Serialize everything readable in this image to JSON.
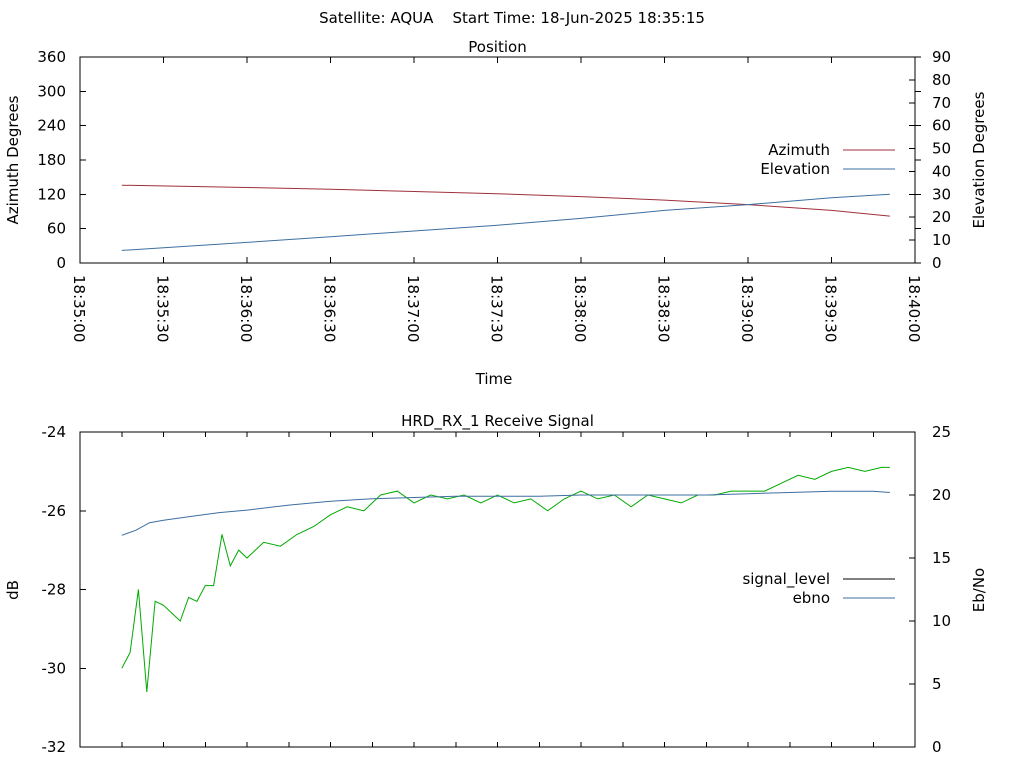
{
  "page_title": "Satellite: AQUA    Start Time: 18-Jun-2025 18:35:15",
  "chart_data": [
    {
      "type": "line",
      "title": "Position",
      "xlabel": "Time",
      "ylabel_left": "Azimuth Degrees",
      "ylabel_right": "Elevation Degrees",
      "x_ticks": [
        "18:35:00",
        "18:35:30",
        "18:36:00",
        "18:36:30",
        "18:37:00",
        "18:37:30",
        "18:38:00",
        "18:38:30",
        "18:39:00",
        "18:39:30",
        "18:40:00"
      ],
      "xlim": [
        "18:35:00",
        "18:40:00"
      ],
      "ylim_left": [
        0,
        360
      ],
      "ylim_right": [
        0,
        90
      ],
      "yticks_left": [
        0,
        60,
        120,
        180,
        240,
        300,
        360
      ],
      "yticks_right": [
        0,
        10,
        20,
        30,
        40,
        50,
        60,
        70,
        80,
        90
      ],
      "grid": false,
      "legend_position": "right",
      "series": [
        {
          "name": "Azimuth",
          "axis": "left",
          "color": "#a0303c",
          "x": [
            "18:35:15",
            "18:36:00",
            "18:36:30",
            "18:37:00",
            "18:37:30",
            "18:38:00",
            "18:38:30",
            "18:39:00",
            "18:39:30",
            "18:39:51"
          ],
          "y": [
            136,
            132,
            129,
            125,
            121,
            116,
            110,
            102,
            92,
            82
          ]
        },
        {
          "name": "Elevation",
          "axis": "right",
          "color": "#3d6fa0",
          "x": [
            "18:35:15",
            "18:36:00",
            "18:36:30",
            "18:37:00",
            "18:37:30",
            "18:38:00",
            "18:38:30",
            "18:39:00",
            "18:39:30",
            "18:39:51"
          ],
          "y": [
            5.5,
            9,
            11.5,
            14,
            16.5,
            19.5,
            23,
            25.5,
            28.5,
            30
          ]
        }
      ]
    },
    {
      "type": "line",
      "title": "HRD_RX_1 Receive Signal",
      "ylabel_left": "dB",
      "ylabel_right": "Eb/No",
      "xlim": [
        "18:35:00",
        "18:40:00"
      ],
      "ylim_left": [
        -32,
        -24
      ],
      "ylim_right": [
        0,
        25
      ],
      "yticks_left": [
        -32,
        -30,
        -28,
        -26,
        -24
      ],
      "yticks_right": [
        0,
        5,
        10,
        15,
        20,
        25
      ],
      "grid": false,
      "legend_position": "right",
      "legend": [
        {
          "label": "signal_level",
          "color": "#000000"
        },
        {
          "label": "ebno",
          "color": "#3d6fa0"
        }
      ],
      "series": [
        {
          "name": "signal_level",
          "axis": "left",
          "color": "#00aa00",
          "x_seconds_from_start": [
            15,
            18,
            21,
            24,
            27,
            30,
            33,
            36,
            39,
            42,
            45,
            48,
            51,
            54,
            57,
            60,
            66,
            72,
            78,
            84,
            90,
            96,
            102,
            108,
            114,
            120,
            126,
            132,
            138,
            144,
            150,
            156,
            162,
            168,
            174,
            180,
            186,
            192,
            198,
            204,
            210,
            216,
            222,
            228,
            234,
            240,
            246,
            252,
            258,
            264,
            270,
            276,
            282,
            288,
            291
          ],
          "y": [
            -30.0,
            -29.6,
            -28.0,
            -30.6,
            -28.3,
            -28.4,
            -28.6,
            -28.8,
            -28.2,
            -28.3,
            -27.9,
            -27.9,
            -26.6,
            -27.4,
            -27.0,
            -27.2,
            -26.8,
            -26.9,
            -26.6,
            -26.4,
            -26.1,
            -25.9,
            -26.0,
            -25.6,
            -25.5,
            -25.8,
            -25.6,
            -25.7,
            -25.6,
            -25.8,
            -25.6,
            -25.8,
            -25.7,
            -26.0,
            -25.7,
            -25.5,
            -25.7,
            -25.6,
            -25.9,
            -25.6,
            -25.7,
            -25.8,
            -25.6,
            -25.6,
            -25.5,
            -25.5,
            -25.5,
            -25.3,
            -25.1,
            -25.2,
            -25.0,
            -24.9,
            -25.0,
            -24.9,
            -24.9
          ]
        },
        {
          "name": "ebno",
          "axis": "right",
          "color": "#3d6fa0",
          "x_seconds_from_start": [
            15,
            20,
            25,
            30,
            40,
            50,
            60,
            75,
            90,
            105,
            120,
            135,
            150,
            165,
            180,
            195,
            210,
            225,
            240,
            255,
            270,
            285,
            291
          ],
          "y": [
            16.8,
            17.2,
            17.8,
            18.0,
            18.3,
            18.6,
            18.8,
            19.2,
            19.5,
            19.7,
            19.8,
            19.9,
            19.9,
            19.9,
            20.0,
            20.0,
            20.0,
            20.0,
            20.1,
            20.2,
            20.3,
            20.3,
            20.2
          ]
        }
      ]
    }
  ]
}
